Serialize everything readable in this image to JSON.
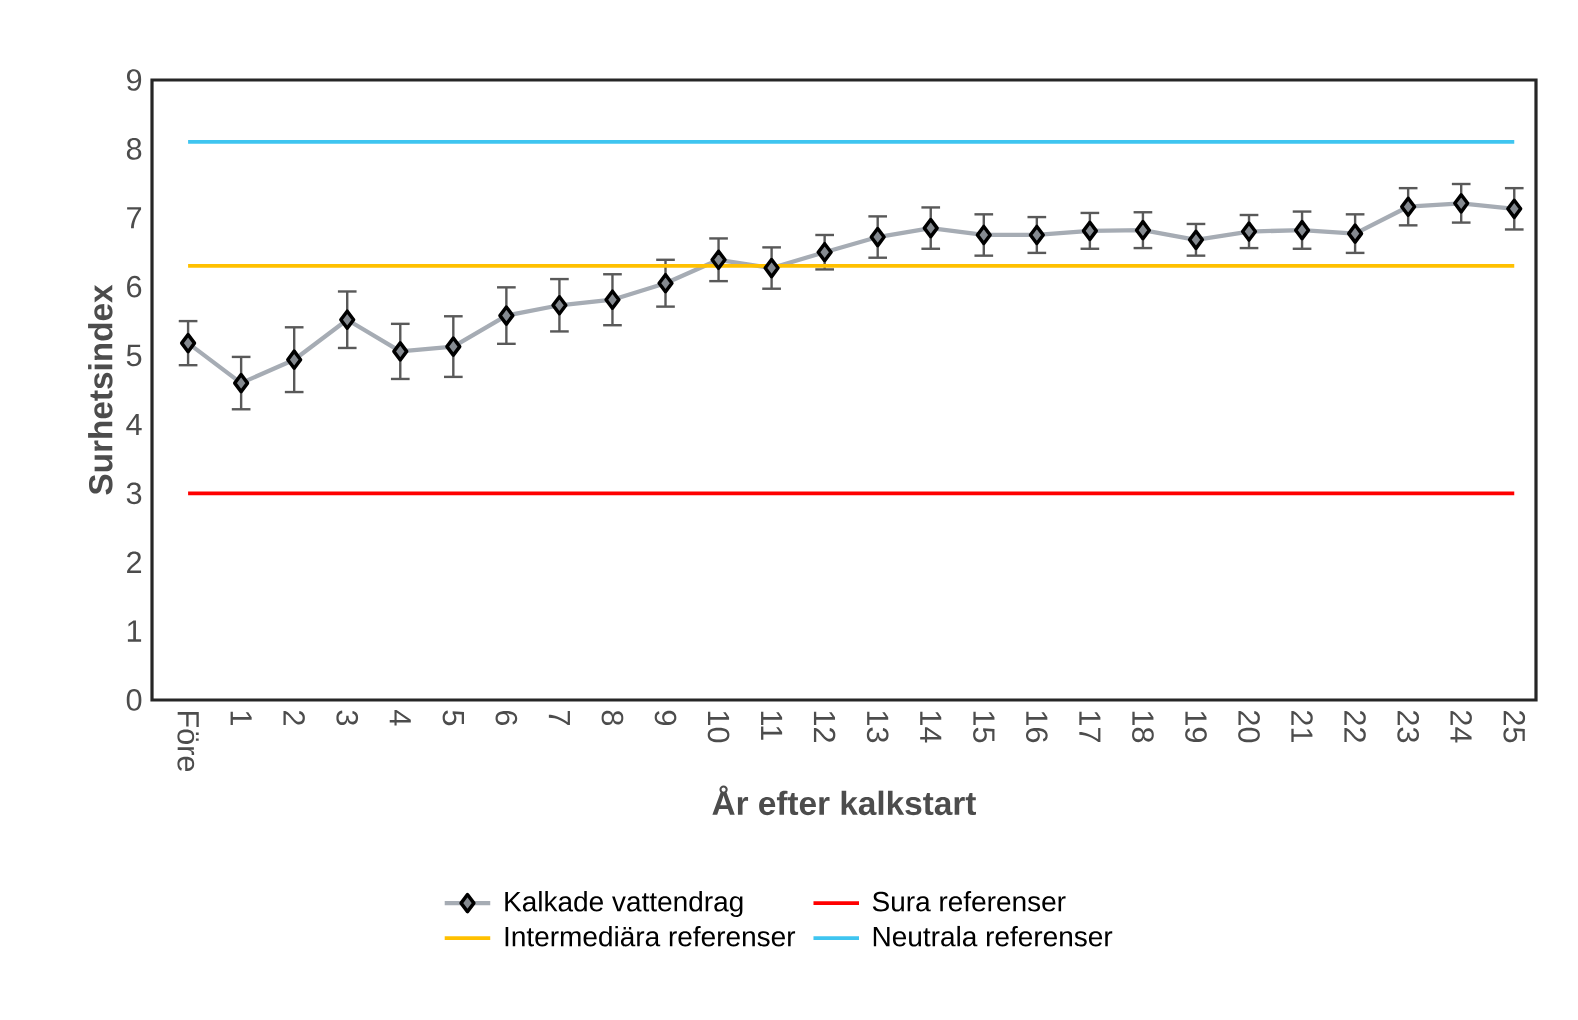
{
  "chart_data": {
    "type": "line",
    "xlabel": "År efter kalkstart",
    "ylabel": "Surhetsindex",
    "categories": [
      "Före",
      "1",
      "2",
      "3",
      "4",
      "5",
      "6",
      "7",
      "8",
      "9",
      "10",
      "11",
      "12",
      "13",
      "14",
      "15",
      "16",
      "17",
      "18",
      "19",
      "20",
      "21",
      "22",
      "23",
      "24",
      "25"
    ],
    "series": [
      {
        "name": "Kalkade vattendrag",
        "color": "#a6acb4",
        "marker": "diamond",
        "values": [
          5.18,
          4.6,
          4.94,
          5.52,
          5.06,
          5.13,
          5.58,
          5.73,
          5.81,
          6.05,
          6.39,
          6.27,
          6.5,
          6.72,
          6.85,
          6.75,
          6.75,
          6.81,
          6.82,
          6.68,
          6.8,
          6.82,
          6.77,
          7.16,
          7.21,
          7.13
        ],
        "errors": [
          0.32,
          0.38,
          0.47,
          0.41,
          0.4,
          0.44,
          0.41,
          0.38,
          0.37,
          0.34,
          0.31,
          0.3,
          0.25,
          0.3,
          0.3,
          0.3,
          0.26,
          0.26,
          0.26,
          0.23,
          0.24,
          0.27,
          0.28,
          0.27,
          0.28,
          0.3
        ]
      },
      {
        "name": "Sura referenser",
        "color": "#ff0000",
        "marker": "none",
        "values": [
          3.0,
          3.0,
          3.0,
          3.0,
          3.0,
          3.0,
          3.0,
          3.0,
          3.0,
          3.0,
          3.0,
          3.0,
          3.0,
          3.0,
          3.0,
          3.0,
          3.0,
          3.0,
          3.0,
          3.0,
          3.0,
          3.0,
          3.0,
          3.0,
          3.0,
          3.0
        ]
      },
      {
        "name": "Intermediära referenser",
        "color": "#ffc000",
        "marker": "none",
        "values": [
          6.3,
          6.3,
          6.3,
          6.3,
          6.3,
          6.3,
          6.3,
          6.3,
          6.3,
          6.3,
          6.3,
          6.3,
          6.3,
          6.3,
          6.3,
          6.3,
          6.3,
          6.3,
          6.3,
          6.3,
          6.3,
          6.3,
          6.3,
          6.3,
          6.3,
          6.3
        ]
      },
      {
        "name": "Neutrala referenser",
        "color": "#3fc5f0",
        "marker": "none",
        "values": [
          8.1,
          8.1,
          8.1,
          8.1,
          8.1,
          8.1,
          8.1,
          8.1,
          8.1,
          8.1,
          8.1,
          8.1,
          8.1,
          8.1,
          8.1,
          8.1,
          8.1,
          8.1,
          8.1,
          8.1,
          8.1,
          8.1,
          8.1,
          8.1,
          8.1,
          8.1
        ]
      }
    ],
    "ylim": [
      0,
      9
    ],
    "yticks": [
      0,
      1,
      2,
      3,
      4,
      5,
      6,
      7,
      8,
      9
    ],
    "legend": "bottom"
  }
}
